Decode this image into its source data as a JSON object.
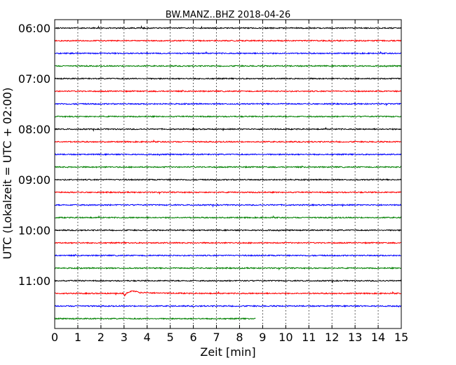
{
  "chart_data": {
    "type": "line",
    "title": "BW.MANZ..BHZ 2018-04-26",
    "xlabel": "Zeit  [min]",
    "ylabel": "UTC (Lokalzeit = UTC + 02:00)",
    "xlim": [
      0,
      15
    ],
    "x_ticks": [
      0,
      1,
      2,
      3,
      4,
      5,
      6,
      7,
      8,
      9,
      10,
      11,
      12,
      13,
      14,
      15
    ],
    "x_tick_labels": [
      "0",
      "1",
      "2",
      "3",
      "4",
      "5",
      "6",
      "7",
      "8",
      "9",
      "10",
      "11",
      "12",
      "13",
      "14",
      "15"
    ],
    "grid": "vertical dotted",
    "y_tick_labels": [
      "06:00",
      "07:00",
      "08:00",
      "09:00",
      "10:00",
      "11:00"
    ],
    "trace_interval_min": 15,
    "traces": [
      {
        "start": "06:00",
        "color": "#000000",
        "end_min": 15
      },
      {
        "start": "06:15",
        "color": "#ff0000",
        "end_min": 15
      },
      {
        "start": "06:30",
        "color": "#0000ff",
        "end_min": 15
      },
      {
        "start": "06:45",
        "color": "#008000",
        "end_min": 15
      },
      {
        "start": "07:00",
        "color": "#000000",
        "end_min": 15
      },
      {
        "start": "07:15",
        "color": "#ff0000",
        "end_min": 15
      },
      {
        "start": "07:30",
        "color": "#0000ff",
        "end_min": 15
      },
      {
        "start": "07:45",
        "color": "#008000",
        "end_min": 15
      },
      {
        "start": "08:00",
        "color": "#000000",
        "end_min": 15
      },
      {
        "start": "08:15",
        "color": "#ff0000",
        "end_min": 15
      },
      {
        "start": "08:30",
        "color": "#0000ff",
        "end_min": 15
      },
      {
        "start": "08:45",
        "color": "#008000",
        "end_min": 15
      },
      {
        "start": "09:00",
        "color": "#000000",
        "end_min": 15
      },
      {
        "start": "09:15",
        "color": "#ff0000",
        "end_min": 15
      },
      {
        "start": "09:30",
        "color": "#0000ff",
        "end_min": 15
      },
      {
        "start": "09:45",
        "color": "#008000",
        "end_min": 15
      },
      {
        "start": "10:00",
        "color": "#000000",
        "end_min": 15
      },
      {
        "start": "10:15",
        "color": "#ff0000",
        "end_min": 15
      },
      {
        "start": "10:30",
        "color": "#0000ff",
        "end_min": 15
      },
      {
        "start": "10:45",
        "color": "#008000",
        "end_min": 15
      },
      {
        "start": "11:00",
        "color": "#000000",
        "end_min": 15
      },
      {
        "start": "11:15",
        "color": "#ff0000",
        "end_min": 15,
        "event_min": 3.0
      },
      {
        "start": "11:30",
        "color": "#0000ff",
        "end_min": 15
      },
      {
        "start": "11:45",
        "color": "#008000",
        "end_min": 8.7
      }
    ]
  }
}
